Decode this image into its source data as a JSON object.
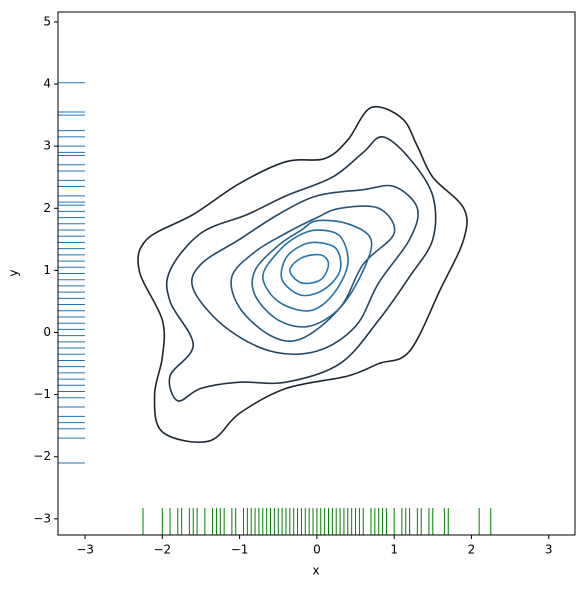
{
  "chart_data": {
    "type": "kde",
    "xlabel": "x",
    "ylabel": "y",
    "xlim": [
      -3.35,
      3.34
    ],
    "ylim": [
      -3.26,
      5.16
    ],
    "xticks": [
      {
        "value": -3,
        "label": "−3"
      },
      {
        "value": -2,
        "label": "−2"
      },
      {
        "value": -1,
        "label": "−1"
      },
      0,
      1,
      2,
      3
    ],
    "yticks": [
      {
        "value": -3,
        "label": "−3"
      },
      {
        "value": -2,
        "label": "−2"
      },
      {
        "value": -1,
        "label": "−1"
      },
      0,
      1,
      2,
      3,
      4,
      5
    ],
    "contours": [
      {
        "color": "#1c2631",
        "x": [
          0.7,
          1.1,
          1.3,
          1.5,
          1.9,
          1.9,
          1.6,
          1.2,
          0.8,
          0.4,
          -0.4,
          -1.0,
          -1.4,
          -2.0,
          -2.1,
          -2.0,
          -2.0,
          -2.3,
          -2.2,
          -1.6,
          -1.0,
          -0.4,
          0.1,
          0.4
        ],
        "y": [
          3.62,
          3.45,
          3.0,
          2.5,
          2.0,
          1.5,
          0.7,
          -0.3,
          -0.5,
          -0.7,
          -0.9,
          -1.3,
          -1.75,
          -1.6,
          -1.0,
          -0.4,
          0.2,
          1.0,
          1.5,
          1.9,
          2.4,
          2.75,
          2.8,
          3.1
        ]
      },
      {
        "color": "#22364a",
        "x": [
          0.85,
          1.2,
          1.5,
          1.5,
          1.2,
          0.8,
          0.3,
          -0.4,
          -1.0,
          -1.5,
          -1.8,
          -1.9,
          -1.6,
          -1.9,
          -1.9,
          -1.5,
          -0.9,
          -0.4,
          0.2,
          0.6
        ],
        "y": [
          3.15,
          2.8,
          2.2,
          1.5,
          0.9,
          0.2,
          -0.5,
          -0.8,
          -0.8,
          -0.9,
          -1.1,
          -0.7,
          -0.2,
          0.5,
          1.0,
          1.6,
          1.9,
          2.2,
          2.5,
          2.9
        ]
      },
      {
        "color": "#264762",
        "x": [
          0.6,
          1.0,
          1.3,
          1.2,
          0.8,
          0.5,
          0.0,
          -0.6,
          -1.2,
          -1.6,
          -1.5,
          -1.0,
          -0.5,
          0.0
        ],
        "y": [
          2.3,
          2.35,
          2.0,
          1.5,
          0.8,
          0.1,
          -0.3,
          -0.3,
          0.1,
          0.7,
          1.1,
          1.5,
          1.9,
          2.2
        ]
      },
      {
        "color": "#28567a",
        "x": [
          0.3,
          0.8,
          1.0,
          0.6,
          0.3,
          -0.2,
          -0.6,
          -1.0,
          -1.1,
          -0.8,
          -0.4,
          0.0
        ],
        "y": [
          2.0,
          2.0,
          1.6,
          1.1,
          0.4,
          -0.1,
          -0.05,
          0.4,
          0.9,
          1.3,
          1.6,
          1.85
        ]
      },
      {
        "color": "#286590",
        "x": [
          0.0,
          0.4,
          0.7,
          0.6,
          0.3,
          -0.1,
          -0.5,
          -0.8,
          -0.8,
          -0.5,
          -0.2
        ],
        "y": [
          1.8,
          1.75,
          1.5,
          1.0,
          0.4,
          0.1,
          0.2,
          0.6,
          1.0,
          1.4,
          1.65
        ]
      },
      {
        "color": "#2571a3",
        "x": [
          0.0,
          0.3,
          0.4,
          0.2,
          -0.1,
          -0.5,
          -0.7,
          -0.5,
          -0.25
        ],
        "y": [
          1.65,
          1.55,
          1.1,
          0.6,
          0.35,
          0.5,
          0.9,
          1.3,
          1.55
        ]
      },
      {
        "color": "#2176ae",
        "x": [
          0.0,
          0.25,
          0.3,
          0.1,
          -0.2,
          -0.45,
          -0.4,
          -0.2
        ],
        "y": [
          1.45,
          1.35,
          1.0,
          0.7,
          0.6,
          0.85,
          1.2,
          1.4
        ]
      },
      {
        "color": "#1f78b4",
        "x": [
          0.05,
          0.15,
          0.05,
          -0.2,
          -0.35,
          -0.2
        ],
        "y": [
          1.25,
          1.1,
          0.85,
          0.8,
          1.0,
          1.2
        ]
      }
    ],
    "rug_x": {
      "color": "#008000",
      "values": [
        -2.25,
        -2.0,
        -1.9,
        -1.8,
        -1.75,
        -1.65,
        -1.6,
        -1.55,
        -1.45,
        -1.35,
        -1.3,
        -1.25,
        -1.2,
        -1.1,
        -1.05,
        -0.95,
        -0.9,
        -0.85,
        -0.8,
        -0.75,
        -0.7,
        -0.65,
        -0.6,
        -0.55,
        -0.5,
        -0.45,
        -0.4,
        -0.35,
        -0.3,
        -0.25,
        -0.2,
        -0.15,
        -0.1,
        -0.05,
        0.0,
        0.05,
        0.1,
        0.15,
        0.2,
        0.25,
        0.3,
        0.35,
        0.4,
        0.45,
        0.5,
        0.55,
        0.6,
        0.7,
        0.75,
        0.8,
        0.85,
        0.9,
        1.0,
        1.1,
        1.15,
        1.2,
        1.3,
        1.35,
        1.45,
        1.5,
        1.65,
        1.7,
        2.1,
        2.25
      ]
    },
    "rug_y": {
      "color": "#1f77b4",
      "values": [
        4.02,
        3.55,
        3.5,
        3.25,
        3.15,
        3.0,
        2.9,
        2.85,
        2.7,
        2.6,
        2.45,
        2.35,
        2.2,
        2.1,
        2.05,
        1.95,
        1.85,
        1.75,
        1.65,
        1.55,
        1.45,
        1.35,
        1.25,
        1.15,
        1.05,
        0.95,
        0.85,
        0.75,
        0.65,
        0.55,
        0.45,
        0.35,
        0.25,
        0.15,
        0.05,
        -0.05,
        -0.15,
        -0.25,
        -0.35,
        -0.45,
        -0.55,
        -0.65,
        -0.75,
        -0.85,
        -0.95,
        -1.05,
        -1.2,
        -1.35,
        -1.45,
        -1.55,
        -1.7,
        -2.1
      ]
    }
  }
}
